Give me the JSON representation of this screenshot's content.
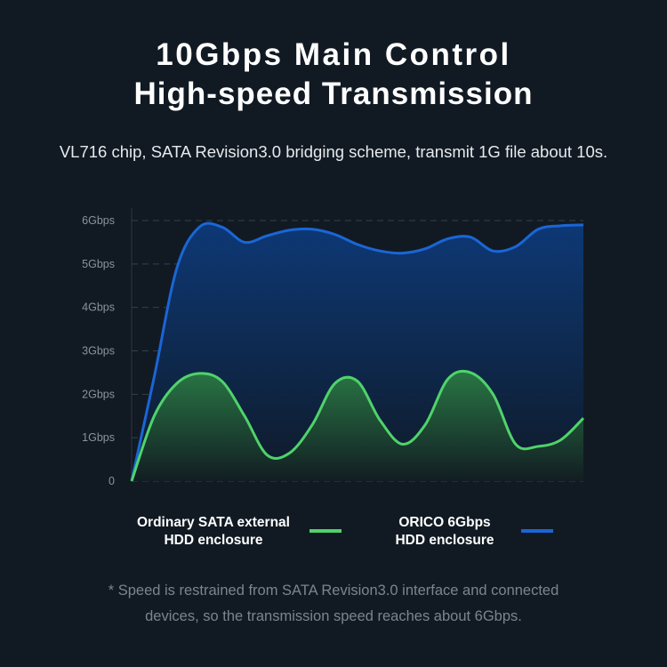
{
  "header": {
    "title_line1": "10Gbps Main Control",
    "title_line2": "High-speed Transmission",
    "subtitle": "VL716 chip, SATA Revision3.0 bridging scheme, transmit 1G file about 10s."
  },
  "chart_data": {
    "type": "area",
    "title": "",
    "xlabel": "",
    "ylabel": "",
    "ylim": [
      0,
      6
    ],
    "y_ticks": [
      "0",
      "1Gbps",
      "2Gbps",
      "3Gbps",
      "4Gbps",
      "5Gbps",
      "6Gbps"
    ],
    "grid": true,
    "legend_placement": "bottom",
    "series": [
      {
        "name": "ORICO 6Gbps HDD enclosure",
        "color": "#1a66d6",
        "values": [
          0,
          2.4,
          4.9,
          5.85,
          5.85,
          5.5,
          5.65,
          5.78,
          5.8,
          5.68,
          5.45,
          5.3,
          5.25,
          5.35,
          5.58,
          5.62,
          5.3,
          5.4,
          5.8,
          5.88,
          5.9
        ]
      },
      {
        "name": "Ordinary SATA external HDD enclosure",
        "color": "#4fd36a",
        "values": [
          0,
          1.5,
          2.25,
          2.48,
          2.3,
          1.5,
          0.6,
          0.65,
          1.3,
          2.25,
          2.3,
          1.4,
          0.85,
          1.3,
          2.35,
          2.5,
          2.0,
          0.85,
          0.8,
          0.95,
          1.45
        ]
      }
    ]
  },
  "legend": {
    "green_line1": "Ordinary SATA external",
    "green_line2": "HDD enclosure",
    "blue_line1": "ORICO 6Gbps",
    "blue_line2": "HDD enclosure"
  },
  "footnote": {
    "line1": "* Speed is restrained from SATA Revision3.0 interface and connected",
    "line2": "devices, so the transmission speed reaches about 6Gbps."
  }
}
